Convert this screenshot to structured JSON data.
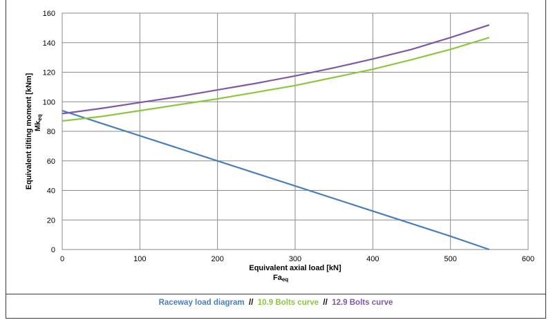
{
  "chart_data": {
    "type": "line",
    "xlabel": "Equivalent axial load [kN]",
    "xlabel_sub": "Fa",
    "xlabel_sub_index": "eq",
    "ylabel": "Equivalent tilting moment [kNm]",
    "ylabel_sub": "Mk",
    "ylabel_sub_index": "eq",
    "xlim": [
      0,
      600
    ],
    "ylim": [
      0,
      160
    ],
    "xticks": [
      0,
      100,
      200,
      300,
      400,
      500,
      600
    ],
    "yticks": [
      0,
      20,
      40,
      60,
      80,
      100,
      120,
      140,
      160
    ],
    "grid": true,
    "legend_position": "bottom",
    "series": [
      {
        "name": "Raceway load diagram",
        "color": "#4a7ebb",
        "x": [
          0,
          100,
          200,
          300,
          400,
          500,
          550
        ],
        "y": [
          94,
          77,
          60,
          43,
          26,
          9,
          0
        ]
      },
      {
        "name": "10.9 Bolts curve",
        "color": "#8dc63f",
        "x": [
          0,
          50,
          100,
          150,
          200,
          250,
          300,
          350,
          400,
          450,
          500,
          550
        ],
        "y": [
          87,
          90,
          94,
          98,
          102,
          106.5,
          111,
          116.5,
          122,
          128.5,
          135.5,
          143.5
        ]
      },
      {
        "name": "12.9 Bolts curve",
        "color": "#7f57a8",
        "x": [
          0,
          50,
          100,
          150,
          200,
          250,
          300,
          350,
          400,
          450,
          500,
          550
        ],
        "y": [
          92,
          95.5,
          99.5,
          103.5,
          108,
          112.5,
          117.5,
          123,
          129,
          135.5,
          143.5,
          152
        ]
      }
    ],
    "legend_separator": "//"
  }
}
